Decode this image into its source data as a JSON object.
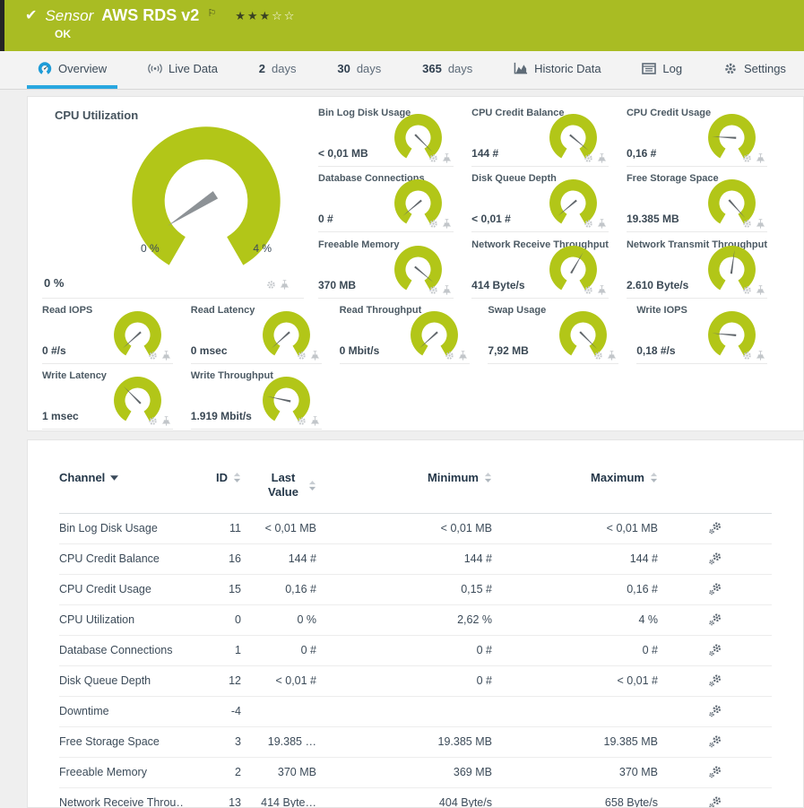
{
  "header": {
    "kind_label": "Sensor",
    "sensor_name": "AWS RDS v2",
    "status": "OK",
    "stars_filled": "★★★",
    "stars_empty": "☆☆"
  },
  "tabs": [
    {
      "label": "Overview",
      "icon": "gauge-icon",
      "active": true
    },
    {
      "label": "Live Data",
      "icon": "live-icon",
      "active": false
    },
    {
      "num": "2",
      "label": "days",
      "active": false
    },
    {
      "num": "30",
      "label": "days",
      "active": false
    },
    {
      "num": "365",
      "label": "days",
      "active": false
    },
    {
      "label": "Historic Data",
      "icon": "historic-icon",
      "active": false
    },
    {
      "label": "Log",
      "icon": "log-icon",
      "active": false
    },
    {
      "label": "Settings",
      "icon": "settings-icon",
      "active": false
    }
  ],
  "gauges": {
    "primary": {
      "title": "CPU Utilization",
      "value": "0 %",
      "scale_min": "0 %",
      "scale_max": "4 %",
      "needle_deg": 147
    },
    "side": [
      {
        "title": "Bin Log Disk Usage",
        "value": "< 0,01 MB",
        "needle_deg": 45
      },
      {
        "title": "CPU Credit Balance",
        "value": "144 #",
        "needle_deg": 40
      },
      {
        "title": "CPU Credit Usage",
        "value": "0,16 #",
        "needle_deg": 183
      },
      {
        "title": "Database Connections",
        "value": "0 #",
        "needle_deg": 140
      },
      {
        "title": "Disk Queue Depth",
        "value": "< 0,01 #",
        "needle_deg": 140
      },
      {
        "title": "Free Storage Space",
        "value": "19.385 MB",
        "needle_deg": 48
      },
      {
        "title": "Freeable Memory",
        "value": "370 MB",
        "needle_deg": 40
      },
      {
        "title": "Network Receive Throughput",
        "value": "414 Byte/s",
        "needle_deg": 300
      },
      {
        "title": "Network Transmit Throughput",
        "value": "2.610 Byte/s",
        "needle_deg": 278
      }
    ],
    "wide": [
      {
        "title": "Read IOPS",
        "value": "0 #/s",
        "needle_deg": 138
      },
      {
        "title": "Read Latency",
        "value": "0 msec",
        "needle_deg": 138
      },
      {
        "title": "Read Throughput",
        "value": "0 Mbit/s",
        "needle_deg": 138
      },
      {
        "title": "Swap Usage",
        "value": "7,92 MB",
        "needle_deg": 45
      },
      {
        "title": "Write IOPS",
        "value": "0,18 #/s",
        "needle_deg": 185
      },
      {
        "title": "Write Latency",
        "value": "1 msec",
        "needle_deg": 225
      },
      {
        "title": "Write Throughput",
        "value": "1.919 Mbit/s",
        "needle_deg": 192
      }
    ]
  },
  "table": {
    "columns": {
      "channel": "Channel",
      "id": "ID",
      "last_value": "Last Value",
      "minimum": "Minimum",
      "maximum": "Maximum"
    },
    "rows": [
      {
        "channel": "Bin Log Disk Usage",
        "id": "11",
        "last": "< 0,01 MB",
        "min": "< 0,01 MB",
        "max": "< 0,01 MB"
      },
      {
        "channel": "CPU Credit Balance",
        "id": "16",
        "last": "144 #",
        "min": "144 #",
        "max": "144 #"
      },
      {
        "channel": "CPU Credit Usage",
        "id": "15",
        "last": "0,16 #",
        "min": "0,15 #",
        "max": "0,16 #"
      },
      {
        "channel": "CPU Utilization",
        "id": "0",
        "last": "0 %",
        "min": "2,62 %",
        "max": "4 %"
      },
      {
        "channel": "Database Connections",
        "id": "1",
        "last": "0 #",
        "min": "0 #",
        "max": "0 #"
      },
      {
        "channel": "Disk Queue Depth",
        "id": "12",
        "last": "< 0,01 #",
        "min": "0 #",
        "max": "< 0,01 #"
      },
      {
        "channel": "Downtime",
        "id": "-4",
        "last": "",
        "min": "",
        "max": ""
      },
      {
        "channel": "Free Storage Space",
        "id": "3",
        "last": "19.385 …",
        "min": "19.385 MB",
        "max": "19.385 MB"
      },
      {
        "channel": "Freeable Memory",
        "id": "2",
        "last": "370 MB",
        "min": "369 MB",
        "max": "370 MB"
      },
      {
        "channel": "Network Receive Throu…",
        "id": "13",
        "last": "414 Byte…",
        "min": "404 Byte/s",
        "max": "658 Byte/s"
      }
    ]
  },
  "colors": {
    "header_green": "#a9bc23",
    "gauge_green": "#b2c618",
    "accent_blue": "#29a7e0",
    "needle_gray": "#8d9296"
  }
}
